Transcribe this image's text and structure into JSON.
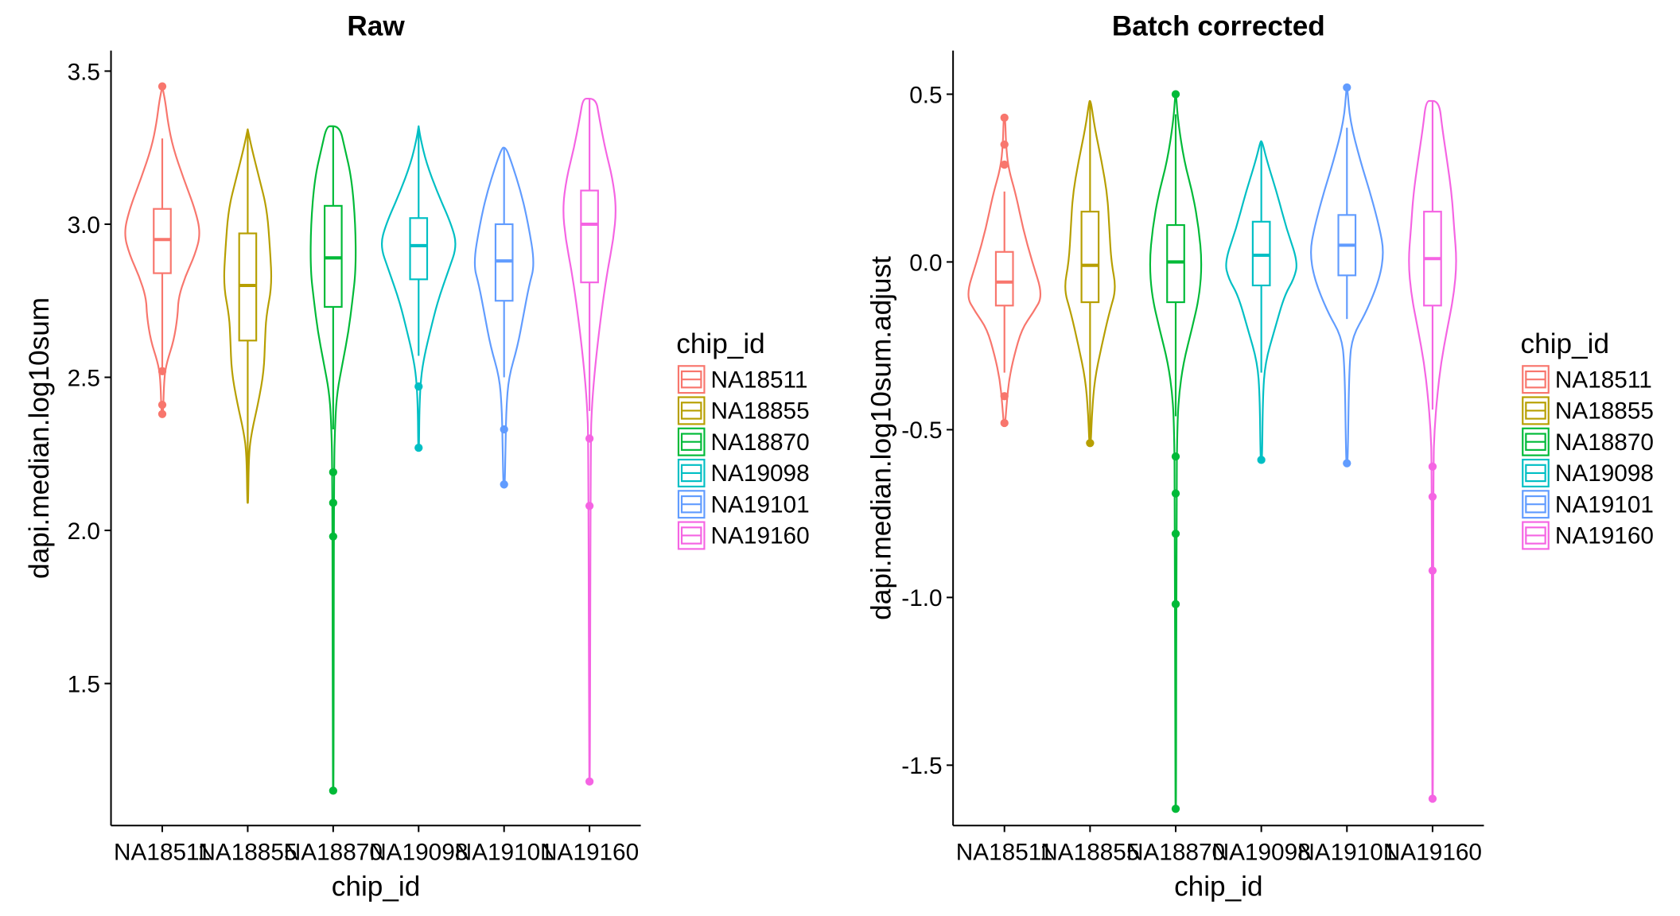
{
  "legend": {
    "title": "chip_id"
  },
  "colors": [
    "#F8766D",
    "#B79F00",
    "#00BA38",
    "#00BFC4",
    "#619CFF",
    "#F564E3"
  ],
  "chart_data": [
    {
      "type": "violin",
      "title": "Raw",
      "xlabel": "chip_id",
      "ylabel": "dapi.median.log10sum",
      "ylim": [
        1.036,
        3.567
      ],
      "yticks": [
        1.5,
        2.0,
        2.5,
        3.0,
        3.5
      ],
      "ytick_labels": [
        "1.5",
        "2.0",
        "2.5",
        "3.0",
        "3.5"
      ],
      "categories": [
        "NA18511",
        "NA18855",
        "NA18870",
        "NA19098",
        "NA19101",
        "NA19160"
      ],
      "legend_position": "right",
      "series": [
        {
          "name": "NA18511",
          "box": {
            "lower": 2.52,
            "q1": 2.84,
            "median": 2.95,
            "q3": 3.05,
            "upper": 3.28
          },
          "outliers": [
            3.45,
            2.52,
            2.41,
            2.38
          ],
          "density": [
            [
              3.45,
              0
            ],
            [
              3.4,
              0.08
            ],
            [
              3.33,
              0.15
            ],
            [
              3.25,
              0.28
            ],
            [
              3.15,
              0.55
            ],
            [
              3.05,
              0.85
            ],
            [
              2.97,
              1.0
            ],
            [
              2.9,
              0.85
            ],
            [
              2.83,
              0.6
            ],
            [
              2.76,
              0.42
            ],
            [
              2.7,
              0.4
            ],
            [
              2.62,
              0.3
            ],
            [
              2.55,
              0.12
            ],
            [
              2.5,
              0.05
            ],
            [
              2.38,
              0.02
            ]
          ]
        },
        {
          "name": "NA18855",
          "box": {
            "lower": 2.09,
            "q1": 2.62,
            "median": 2.8,
            "q3": 2.97,
            "upper": 3.31
          },
          "outliers": [],
          "density": [
            [
              3.31,
              0
            ],
            [
              3.25,
              0.1
            ],
            [
              3.15,
              0.3
            ],
            [
              3.05,
              0.5
            ],
            [
              2.92,
              0.58
            ],
            [
              2.8,
              0.63
            ],
            [
              2.7,
              0.48
            ],
            [
              2.62,
              0.45
            ],
            [
              2.52,
              0.42
            ],
            [
              2.42,
              0.28
            ],
            [
              2.32,
              0.1
            ],
            [
              2.25,
              0.03
            ],
            [
              2.09,
              0.01
            ]
          ]
        },
        {
          "name": "NA18870",
          "box": {
            "lower": 2.33,
            "q1": 2.73,
            "median": 2.89,
            "q3": 3.06,
            "upper": 3.32
          },
          "outliers": [
            2.19,
            2.09,
            1.98,
            1.15
          ],
          "density": [
            [
              3.32,
              0.17
            ],
            [
              3.25,
              0.3
            ],
            [
              3.15,
              0.48
            ],
            [
              3.0,
              0.58
            ],
            [
              2.85,
              0.59
            ],
            [
              2.75,
              0.5
            ],
            [
              2.65,
              0.4
            ],
            [
              2.55,
              0.25
            ],
            [
              2.45,
              0.1
            ],
            [
              2.35,
              0.05
            ],
            [
              2.2,
              0.02
            ],
            [
              1.15,
              0.01
            ]
          ]
        },
        {
          "name": "NA19098",
          "box": {
            "lower": 2.57,
            "q1": 2.82,
            "median": 2.93,
            "q3": 3.02,
            "upper": 3.32
          },
          "outliers": [
            2.47,
            2.27
          ],
          "density": [
            [
              3.32,
              0
            ],
            [
              3.28,
              0.05
            ],
            [
              3.2,
              0.2
            ],
            [
              3.1,
              0.5
            ],
            [
              3.0,
              0.85
            ],
            [
              2.93,
              1.0
            ],
            [
              2.85,
              0.78
            ],
            [
              2.75,
              0.5
            ],
            [
              2.65,
              0.3
            ],
            [
              2.57,
              0.15
            ],
            [
              2.5,
              0.06
            ],
            [
              2.4,
              0.02
            ],
            [
              2.27,
              0.01
            ]
          ]
        },
        {
          "name": "NA19101",
          "box": {
            "lower": 2.5,
            "q1": 2.75,
            "median": 2.88,
            "q3": 3.0,
            "upper": 3.25
          },
          "outliers": [
            2.33,
            2.15
          ],
          "density": [
            [
              3.25,
              0.05
            ],
            [
              3.2,
              0.2
            ],
            [
              3.1,
              0.45
            ],
            [
              3.0,
              0.63
            ],
            [
              2.87,
              0.8
            ],
            [
              2.8,
              0.65
            ],
            [
              2.7,
              0.5
            ],
            [
              2.6,
              0.35
            ],
            [
              2.5,
              0.12
            ],
            [
              2.4,
              0.06
            ],
            [
              2.3,
              0.04
            ],
            [
              2.15,
              0.02
            ]
          ]
        },
        {
          "name": "NA19160",
          "box": {
            "lower": 2.39,
            "q1": 2.81,
            "median": 3.0,
            "q3": 3.11,
            "upper": 3.41
          },
          "outliers": [
            2.3,
            2.08,
            1.18
          ],
          "density": [
            [
              3.41,
              0.17
            ],
            [
              3.35,
              0.25
            ],
            [
              3.25,
              0.4
            ],
            [
              3.15,
              0.6
            ],
            [
              3.05,
              0.7
            ],
            [
              2.95,
              0.62
            ],
            [
              2.85,
              0.47
            ],
            [
              2.75,
              0.35
            ],
            [
              2.62,
              0.22
            ],
            [
              2.5,
              0.12
            ],
            [
              2.4,
              0.06
            ],
            [
              2.3,
              0.03
            ],
            [
              1.18,
              0.01
            ]
          ]
        }
      ]
    },
    {
      "type": "violin",
      "title": "Batch corrected",
      "xlabel": "chip_id",
      "ylabel": "dapi.median.log10sum.adjust",
      "ylim": [
        -1.68,
        0.63
      ],
      "yticks": [
        -1.5,
        -1.0,
        -0.5,
        0.0,
        0.5
      ],
      "ytick_labels": [
        "-1.5",
        "-1.0",
        "-0.5",
        "0.0",
        "0.5"
      ],
      "categories": [
        "NA18511",
        "NA18855",
        "NA18870",
        "NA19098",
        "NA19101",
        "NA19160"
      ],
      "legend_position": "right",
      "series": [
        {
          "name": "NA18511",
          "box": {
            "lower": -0.33,
            "q1": -0.13,
            "median": -0.06,
            "q3": 0.03,
            "upper": 0.21
          },
          "outliers": [
            0.43,
            0.35,
            0.29,
            -0.4,
            -0.48
          ],
          "density": [
            [
              0.43,
              0.02
            ],
            [
              0.35,
              0.04
            ],
            [
              0.28,
              0.1
            ],
            [
              0.2,
              0.3
            ],
            [
              0.1,
              0.48
            ],
            [
              0.0,
              0.72
            ],
            [
              -0.1,
              1.0
            ],
            [
              -0.15,
              0.75
            ],
            [
              -0.2,
              0.45
            ],
            [
              -0.28,
              0.25
            ],
            [
              -0.35,
              0.12
            ],
            [
              -0.42,
              0.06
            ],
            [
              -0.48,
              0.02
            ]
          ]
        },
        {
          "name": "NA18855",
          "box": {
            "lower": -0.54,
            "q1": -0.12,
            "median": -0.01,
            "q3": 0.15,
            "upper": 0.48
          },
          "outliers": [
            -0.54
          ],
          "density": [
            [
              0.48,
              0.02
            ],
            [
              0.4,
              0.12
            ],
            [
              0.3,
              0.3
            ],
            [
              0.2,
              0.45
            ],
            [
              0.1,
              0.5
            ],
            [
              0.0,
              0.55
            ],
            [
              -0.08,
              0.68
            ],
            [
              -0.15,
              0.5
            ],
            [
              -0.25,
              0.3
            ],
            [
              -0.35,
              0.12
            ],
            [
              -0.45,
              0.05
            ],
            [
              -0.54,
              0.02
            ]
          ]
        },
        {
          "name": "NA18870",
          "box": {
            "lower": -0.46,
            "q1": -0.12,
            "median": 0.0,
            "q3": 0.11,
            "upper": 0.44
          },
          "outliers": [
            0.5,
            -0.58,
            -0.69,
            -0.81,
            -1.02,
            -1.63
          ],
          "density": [
            [
              0.5,
              0.01
            ],
            [
              0.42,
              0.06
            ],
            [
              0.3,
              0.22
            ],
            [
              0.2,
              0.45
            ],
            [
              0.1,
              0.6
            ],
            [
              0.0,
              0.68
            ],
            [
              -0.1,
              0.62
            ],
            [
              -0.2,
              0.42
            ],
            [
              -0.3,
              0.2
            ],
            [
              -0.4,
              0.08
            ],
            [
              -0.5,
              0.04
            ],
            [
              -0.7,
              0.02
            ],
            [
              -1.63,
              0.01
            ]
          ]
        },
        {
          "name": "NA19098",
          "box": {
            "lower": -0.33,
            "q1": -0.07,
            "median": 0.02,
            "q3": 0.12,
            "upper": 0.36
          },
          "outliers": [
            -0.59
          ],
          "density": [
            [
              0.36,
              0.02
            ],
            [
              0.3,
              0.15
            ],
            [
              0.2,
              0.42
            ],
            [
              0.1,
              0.65
            ],
            [
              0.0,
              0.95
            ],
            [
              -0.05,
              0.85
            ],
            [
              -0.1,
              0.6
            ],
            [
              -0.2,
              0.35
            ],
            [
              -0.3,
              0.1
            ],
            [
              -0.4,
              0.04
            ],
            [
              -0.59,
              0.02
            ]
          ]
        },
        {
          "name": "NA19101",
          "box": {
            "lower": -0.17,
            "q1": -0.04,
            "median": 0.05,
            "q3": 0.14,
            "upper": 0.4
          },
          "outliers": [
            0.52,
            -0.6
          ],
          "density": [
            [
              0.52,
              0.01
            ],
            [
              0.42,
              0.08
            ],
            [
              0.3,
              0.35
            ],
            [
              0.2,
              0.62
            ],
            [
              0.1,
              0.85
            ],
            [
              0.03,
              0.96
            ],
            [
              -0.05,
              0.85
            ],
            [
              -0.15,
              0.5
            ],
            [
              -0.22,
              0.15
            ],
            [
              -0.3,
              0.06
            ],
            [
              -0.6,
              0.02
            ]
          ]
        },
        {
          "name": "NA19160",
          "box": {
            "lower": -0.44,
            "q1": -0.13,
            "median": 0.01,
            "q3": 0.15,
            "upper": 0.48
          },
          "outliers": [
            -0.61,
            -0.7,
            -0.92,
            -1.6
          ],
          "density": [
            [
              0.48,
              0.17
            ],
            [
              0.4,
              0.25
            ],
            [
              0.3,
              0.38
            ],
            [
              0.2,
              0.5
            ],
            [
              0.1,
              0.56
            ],
            [
              0.0,
              0.63
            ],
            [
              -0.1,
              0.55
            ],
            [
              -0.2,
              0.38
            ],
            [
              -0.3,
              0.22
            ],
            [
              -0.4,
              0.12
            ],
            [
              -0.5,
              0.05
            ],
            [
              -0.6,
              0.02
            ],
            [
              -1.6,
              0.01
            ]
          ]
        }
      ]
    }
  ]
}
